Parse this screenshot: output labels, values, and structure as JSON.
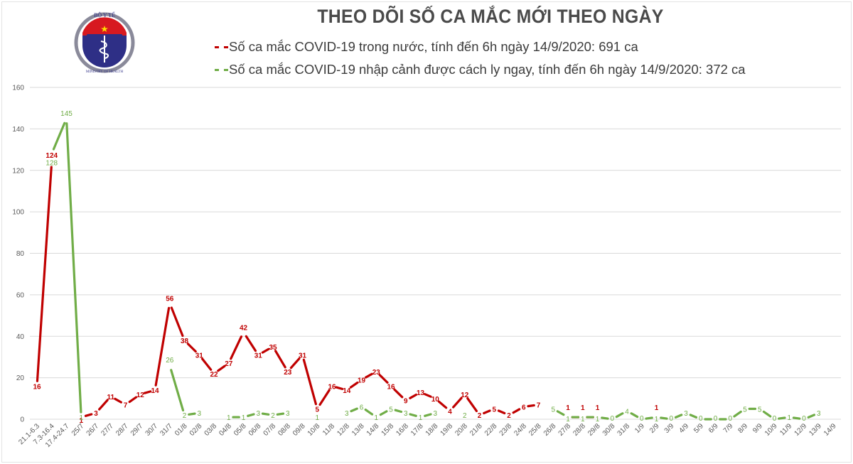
{
  "header": {
    "title": "THEO DÕI SỐ CA MẮC MỚI THEO NGÀY",
    "logo": {
      "top_text": "BỘ Y TẾ",
      "bottom_text": "MINISTRY OF HEALTH"
    },
    "legend": [
      {
        "marker": "- -",
        "label": "Số ca mắc COVID-19 trong nước, tính đến 6h ngày 14/9/2020: 691 ca",
        "color": "#c00000"
      },
      {
        "marker": "- -",
        "label": "Số ca mắc COVID-19 nhập cảnh được cách ly ngay, tính đến 6h ngày 14/9/2020: 372 ca",
        "color": "#70ad47"
      }
    ]
  },
  "chart_data": {
    "type": "line",
    "title": "THEO DÕI SỐ CA MẮC MỚI THEO NGÀY",
    "xlabel": "",
    "ylabel": "",
    "ylim": [
      0,
      160
    ],
    "yticks": [
      0,
      20,
      40,
      60,
      80,
      100,
      120,
      140,
      160
    ],
    "grid": true,
    "legend_position": "top",
    "categories": [
      "21.1-6.3",
      "7.3-16.4",
      "17.4-24.7",
      "25/7",
      "26/7",
      "27/7",
      "28/7",
      "29/7",
      "30/7",
      "31/7",
      "01/8",
      "02/8",
      "03/8",
      "04/8",
      "05/8",
      "06/8",
      "07/8",
      "08/8",
      "09/8",
      "10/8",
      "11/8",
      "12/8",
      "13/8",
      "14/8",
      "15/8",
      "16/8",
      "17/8",
      "18/8",
      "19/8",
      "20/8",
      "21/8",
      "22/8",
      "23/8",
      "24/8",
      "25/8",
      "26/8",
      "27/8",
      "28/8",
      "29/8",
      "30/8",
      "31/8",
      "1/9",
      "2/9",
      "3/9",
      "4/9",
      "5/9",
      "6/9",
      "7/9",
      "8/9",
      "9/9",
      "10/9",
      "11/9",
      "12/9",
      "13/9",
      "14/9"
    ],
    "series": [
      {
        "name": "Số ca mắc COVID-19 trong nước",
        "color": "#c00000",
        "values": [
          16,
          124,
          null,
          1,
          3,
          11,
          7,
          12,
          14,
          56,
          38,
          31,
          22,
          27,
          42,
          31,
          35,
          23,
          31,
          5,
          16,
          14,
          19,
          23,
          16,
          9,
          13,
          10,
          4,
          12,
          2,
          5,
          2,
          6,
          7,
          null,
          1,
          1,
          1,
          null,
          null,
          null,
          1,
          null,
          null,
          null,
          null,
          null,
          null,
          null,
          null,
          null,
          null,
          null,
          null
        ]
      },
      {
        "name": "Số ca mắc COVID-19 nhập cảnh được cách ly ngay",
        "color": "#70ad47",
        "values": [
          null,
          128,
          145,
          1,
          null,
          null,
          null,
          null,
          null,
          26,
          2,
          3,
          null,
          1,
          1,
          3,
          2,
          3,
          null,
          1,
          null,
          3,
          6,
          1,
          5,
          3,
          1,
          3,
          null,
          2,
          null,
          null,
          null,
          null,
          null,
          5,
          1,
          1,
          1,
          0,
          4,
          0,
          1,
          0,
          3,
          0,
          0,
          0,
          5,
          5,
          0,
          1,
          0,
          3,
          null
        ]
      }
    ]
  }
}
